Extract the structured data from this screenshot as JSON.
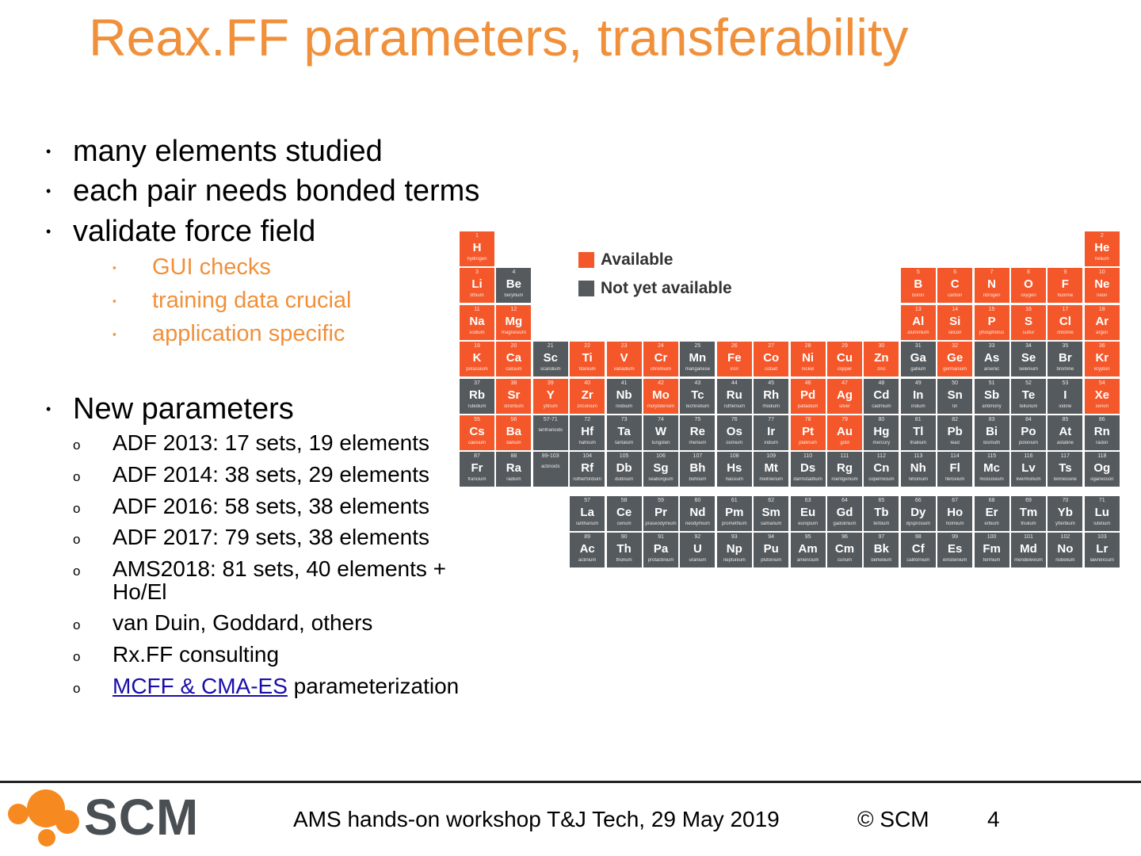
{
  "title": "Reax.FF parameters, transferability",
  "bullets": [
    "many elements studied",
    "each pair needs bonded terms",
    "validate force field"
  ],
  "sub_bullets": [
    "GUI checks",
    "training data crucial",
    "application specific"
  ],
  "new_params_heading": "New parameters",
  "new_params": [
    "ADF 2013: 17 sets, 19 elements",
    "ADF 2014: 38 sets, 29 elements",
    "ADF 2016: 58 sets, 38 elements",
    "ADF 2017: 79 sets, 38 elements",
    "AMS2018: 81 sets, 40 elements +",
    "Ho/El",
    "van Duin, Goddard, others",
    "Rx.FF consulting"
  ],
  "last_item": {
    "link_text": "MCFF & CMA-ES",
    "rest": " parameterization"
  },
  "bullet_glyphs": {
    "level1": "•",
    "level2": "▪",
    "level3": "o"
  },
  "legend": {
    "available": "Available",
    "not_available": "Not yet available"
  },
  "colors": {
    "title": "#f0903a",
    "available": "#f4582a",
    "not_available": "#555a5e",
    "sub_bullets": "#f0903a",
    "logo": "#f6891f",
    "link": "#1a0dab"
  },
  "footer": {
    "logo_text": "SCM",
    "event": "AMS hands-on workshop T&J Tech, 29 May 2019",
    "copyright": "© SCM",
    "page": "4"
  },
  "periodic_table": [
    {
      "n": "1",
      "s": "H",
      "name": "hydrogen",
      "st": "av"
    },
    {
      "n": "2",
      "s": "He",
      "name": "helium",
      "st": "av"
    },
    {
      "n": "3",
      "s": "Li",
      "name": "lithium",
      "st": "av"
    },
    {
      "n": "4",
      "s": "Be",
      "name": "beryllium",
      "st": "na"
    },
    {
      "n": "5",
      "s": "B",
      "name": "boron",
      "st": "av"
    },
    {
      "n": "6",
      "s": "C",
      "name": "carbon",
      "st": "av"
    },
    {
      "n": "7",
      "s": "N",
      "name": "nitrogen",
      "st": "av"
    },
    {
      "n": "8",
      "s": "O",
      "name": "oxygen",
      "st": "av"
    },
    {
      "n": "9",
      "s": "F",
      "name": "fluorine",
      "st": "av"
    },
    {
      "n": "10",
      "s": "Ne",
      "name": "neon",
      "st": "av"
    },
    {
      "n": "11",
      "s": "Na",
      "name": "sodium",
      "st": "av"
    },
    {
      "n": "12",
      "s": "Mg",
      "name": "magnesium",
      "st": "av"
    },
    {
      "n": "13",
      "s": "Al",
      "name": "aluminium",
      "st": "av"
    },
    {
      "n": "14",
      "s": "Si",
      "name": "silicon",
      "st": "av"
    },
    {
      "n": "15",
      "s": "P",
      "name": "phosphorus",
      "st": "av"
    },
    {
      "n": "16",
      "s": "S",
      "name": "sulfur",
      "st": "av"
    },
    {
      "n": "17",
      "s": "Cl",
      "name": "chlorine",
      "st": "av"
    },
    {
      "n": "18",
      "s": "Ar",
      "name": "argon",
      "st": "av"
    },
    {
      "n": "19",
      "s": "K",
      "name": "potassium",
      "st": "av"
    },
    {
      "n": "20",
      "s": "Ca",
      "name": "calcium",
      "st": "av"
    },
    {
      "n": "21",
      "s": "Sc",
      "name": "scandium",
      "st": "na"
    },
    {
      "n": "22",
      "s": "Ti",
      "name": "titanium",
      "st": "av"
    },
    {
      "n": "23",
      "s": "V",
      "name": "vanadium",
      "st": "av"
    },
    {
      "n": "24",
      "s": "Cr",
      "name": "chromium",
      "st": "av"
    },
    {
      "n": "25",
      "s": "Mn",
      "name": "manganese",
      "st": "na"
    },
    {
      "n": "26",
      "s": "Fe",
      "name": "iron",
      "st": "av"
    },
    {
      "n": "27",
      "s": "Co",
      "name": "cobalt",
      "st": "av"
    },
    {
      "n": "28",
      "s": "Ni",
      "name": "nickel",
      "st": "av"
    },
    {
      "n": "29",
      "s": "Cu",
      "name": "copper",
      "st": "av"
    },
    {
      "n": "30",
      "s": "Zn",
      "name": "zinc",
      "st": "av"
    },
    {
      "n": "31",
      "s": "Ga",
      "name": "gallium",
      "st": "na"
    },
    {
      "n": "32",
      "s": "Ge",
      "name": "germanium",
      "st": "av"
    },
    {
      "n": "33",
      "s": "As",
      "name": "arsenic",
      "st": "na"
    },
    {
      "n": "34",
      "s": "Se",
      "name": "selenium",
      "st": "na"
    },
    {
      "n": "35",
      "s": "Br",
      "name": "bromine",
      "st": "na"
    },
    {
      "n": "36",
      "s": "Kr",
      "name": "krypton",
      "st": "av"
    },
    {
      "n": "37",
      "s": "Rb",
      "name": "rubidium",
      "st": "na"
    },
    {
      "n": "38",
      "s": "Sr",
      "name": "strontium",
      "st": "av"
    },
    {
      "n": "39",
      "s": "Y",
      "name": "yttrium",
      "st": "av"
    },
    {
      "n": "40",
      "s": "Zr",
      "name": "zirconium",
      "st": "av"
    },
    {
      "n": "41",
      "s": "Nb",
      "name": "niobium",
      "st": "na"
    },
    {
      "n": "42",
      "s": "Mo",
      "name": "molybdenum",
      "st": "av"
    },
    {
      "n": "43",
      "s": "Tc",
      "name": "technetium",
      "st": "na"
    },
    {
      "n": "44",
      "s": "Ru",
      "name": "ruthenium",
      "st": "na"
    },
    {
      "n": "45",
      "s": "Rh",
      "name": "rhodium",
      "st": "na"
    },
    {
      "n": "46",
      "s": "Pd",
      "name": "palladium",
      "st": "av"
    },
    {
      "n": "47",
      "s": "Ag",
      "name": "silver",
      "st": "av"
    },
    {
      "n": "48",
      "s": "Cd",
      "name": "cadmium",
      "st": "na"
    },
    {
      "n": "49",
      "s": "In",
      "name": "indium",
      "st": "na"
    },
    {
      "n": "50",
      "s": "Sn",
      "name": "tin",
      "st": "na"
    },
    {
      "n": "51",
      "s": "Sb",
      "name": "antimony",
      "st": "na"
    },
    {
      "n": "52",
      "s": "Te",
      "name": "tellurium",
      "st": "na"
    },
    {
      "n": "53",
      "s": "I",
      "name": "iodine",
      "st": "na"
    },
    {
      "n": "54",
      "s": "Xe",
      "name": "xenon",
      "st": "av"
    },
    {
      "n": "55",
      "s": "Cs",
      "name": "caesium",
      "st": "av"
    },
    {
      "n": "56",
      "s": "Ba",
      "name": "barium",
      "st": "av"
    },
    {
      "n": "57-71",
      "s": "",
      "name": "lanthanoids",
      "st": "na"
    },
    {
      "n": "72",
      "s": "Hf",
      "name": "hafnium",
      "st": "na"
    },
    {
      "n": "73",
      "s": "Ta",
      "name": "tantalum",
      "st": "na"
    },
    {
      "n": "74",
      "s": "W",
      "name": "tungsten",
      "st": "na"
    },
    {
      "n": "75",
      "s": "Re",
      "name": "rhenium",
      "st": "na"
    },
    {
      "n": "76",
      "s": "Os",
      "name": "osmium",
      "st": "na"
    },
    {
      "n": "77",
      "s": "Ir",
      "name": "iridium",
      "st": "na"
    },
    {
      "n": "78",
      "s": "Pt",
      "name": "platinum",
      "st": "av"
    },
    {
      "n": "79",
      "s": "Au",
      "name": "gold",
      "st": "av"
    },
    {
      "n": "80",
      "s": "Hg",
      "name": "mercury",
      "st": "na"
    },
    {
      "n": "81",
      "s": "Tl",
      "name": "thallium",
      "st": "na"
    },
    {
      "n": "82",
      "s": "Pb",
      "name": "lead",
      "st": "na"
    },
    {
      "n": "83",
      "s": "Bi",
      "name": "bismuth",
      "st": "na"
    },
    {
      "n": "84",
      "s": "Po",
      "name": "polonium",
      "st": "na"
    },
    {
      "n": "85",
      "s": "At",
      "name": "astatine",
      "st": "na"
    },
    {
      "n": "86",
      "s": "Rn",
      "name": "radon",
      "st": "na"
    },
    {
      "n": "87",
      "s": "Fr",
      "name": "francium",
      "st": "na"
    },
    {
      "n": "88",
      "s": "Ra",
      "name": "radium",
      "st": "na"
    },
    {
      "n": "89-103",
      "s": "",
      "name": "actinoids",
      "st": "na"
    },
    {
      "n": "104",
      "s": "Rf",
      "name": "rutherfordium",
      "st": "na"
    },
    {
      "n": "105",
      "s": "Db",
      "name": "dubnium",
      "st": "na"
    },
    {
      "n": "106",
      "s": "Sg",
      "name": "seaborgium",
      "st": "na"
    },
    {
      "n": "107",
      "s": "Bh",
      "name": "bohrium",
      "st": "na"
    },
    {
      "n": "108",
      "s": "Hs",
      "name": "hassium",
      "st": "na"
    },
    {
      "n": "109",
      "s": "Mt",
      "name": "meitnerium",
      "st": "na"
    },
    {
      "n": "110",
      "s": "Ds",
      "name": "darmstadtium",
      "st": "na"
    },
    {
      "n": "111",
      "s": "Rg",
      "name": "roentgenium",
      "st": "na"
    },
    {
      "n": "112",
      "s": "Cn",
      "name": "copernicium",
      "st": "na"
    },
    {
      "n": "113",
      "s": "Nh",
      "name": "nihonium",
      "st": "na"
    },
    {
      "n": "114",
      "s": "Fl",
      "name": "flerovium",
      "st": "na"
    },
    {
      "n": "115",
      "s": "Mc",
      "name": "moscovium",
      "st": "na"
    },
    {
      "n": "116",
      "s": "Lv",
      "name": "livermorium",
      "st": "na"
    },
    {
      "n": "117",
      "s": "Ts",
      "name": "tennessine",
      "st": "na"
    },
    {
      "n": "118",
      "s": "Og",
      "name": "oganesson",
      "st": "na"
    },
    {
      "n": "57",
      "s": "La",
      "name": "lanthanum",
      "st": "na"
    },
    {
      "n": "58",
      "s": "Ce",
      "name": "cerium",
      "st": "na"
    },
    {
      "n": "59",
      "s": "Pr",
      "name": "praseodymium",
      "st": "na"
    },
    {
      "n": "60",
      "s": "Nd",
      "name": "neodymium",
      "st": "na"
    },
    {
      "n": "61",
      "s": "Pm",
      "name": "promethium",
      "st": "na"
    },
    {
      "n": "62",
      "s": "Sm",
      "name": "samarium",
      "st": "na"
    },
    {
      "n": "63",
      "s": "Eu",
      "name": "europium",
      "st": "na"
    },
    {
      "n": "64",
      "s": "Gd",
      "name": "gadolinium",
      "st": "na"
    },
    {
      "n": "65",
      "s": "Tb",
      "name": "terbium",
      "st": "na"
    },
    {
      "n": "66",
      "s": "Dy",
      "name": "dysprosium",
      "st": "na"
    },
    {
      "n": "67",
      "s": "Ho",
      "name": "holmium",
      "st": "na"
    },
    {
      "n": "68",
      "s": "Er",
      "name": "erbium",
      "st": "na"
    },
    {
      "n": "69",
      "s": "Tm",
      "name": "thulium",
      "st": "na"
    },
    {
      "n": "70",
      "s": "Yb",
      "name": "ytterbium",
      "st": "na"
    },
    {
      "n": "71",
      "s": "Lu",
      "name": "lutetium",
      "st": "na"
    },
    {
      "n": "89",
      "s": "Ac",
      "name": "actinium",
      "st": "na"
    },
    {
      "n": "90",
      "s": "Th",
      "name": "thorium",
      "st": "na"
    },
    {
      "n": "91",
      "s": "Pa",
      "name": "protactinium",
      "st": "na"
    },
    {
      "n": "92",
      "s": "U",
      "name": "uranium",
      "st": "na"
    },
    {
      "n": "93",
      "s": "Np",
      "name": "neptunium",
      "st": "na"
    },
    {
      "n": "94",
      "s": "Pu",
      "name": "plutonium",
      "st": "na"
    },
    {
      "n": "95",
      "s": "Am",
      "name": "americium",
      "st": "na"
    },
    {
      "n": "96",
      "s": "Cm",
      "name": "curium",
      "st": "na"
    },
    {
      "n": "97",
      "s": "Bk",
      "name": "berkelium",
      "st": "na"
    },
    {
      "n": "98",
      "s": "Cf",
      "name": "californium",
      "st": "na"
    },
    {
      "n": "99",
      "s": "Es",
      "name": "einsteinium",
      "st": "na"
    },
    {
      "n": "100",
      "s": "Fm",
      "name": "fermium",
      "st": "na"
    },
    {
      "n": "101",
      "s": "Md",
      "name": "mendelevium",
      "st": "na"
    },
    {
      "n": "102",
      "s": "No",
      "name": "nobelium",
      "st": "na"
    },
    {
      "n": "103",
      "s": "Lr",
      "name": "lawrencium",
      "st": "na"
    }
  ]
}
